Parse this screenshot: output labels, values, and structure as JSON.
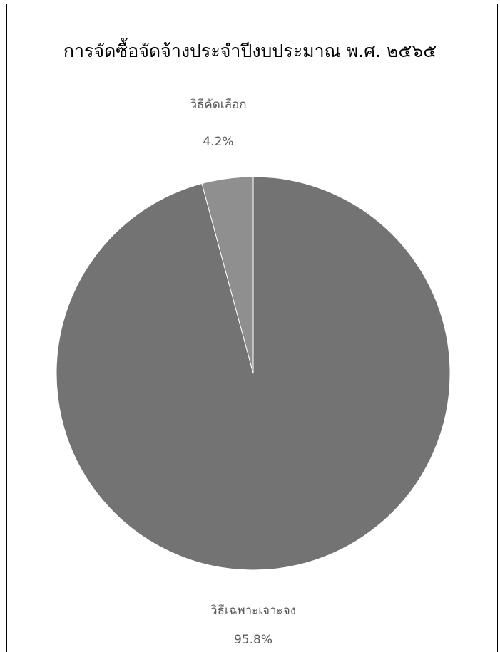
{
  "chart_data": {
    "type": "pie",
    "title": "การจัดซื้อจัดจ้างประจำปีงบประมาณ พ.ศ. ๒๕๖๕",
    "legend": "none",
    "slices": [
      {
        "label": "วิธีเฉพาะเจาะจง",
        "value": 95.8,
        "display": "95.8%",
        "color": "#737373"
      },
      {
        "label": "วิธีคัดเลือก",
        "value": 4.2,
        "display": "4.2%",
        "color": "#8f8f8f"
      }
    ]
  }
}
